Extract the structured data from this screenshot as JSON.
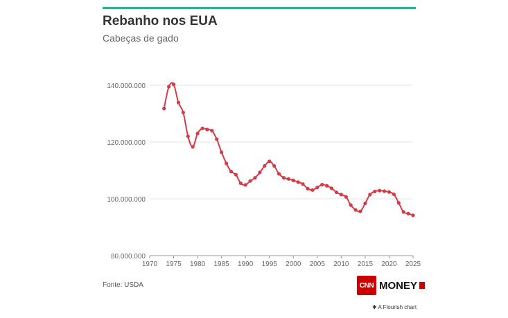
{
  "header": {
    "title": "Rebanho nos EUA",
    "subtitle": "Cabeças de gado"
  },
  "footer": {
    "source": "Fonte: USDA",
    "logo_cnn": "CNN",
    "logo_money": "MONEY",
    "flourish": "✱ A Flourish chart"
  },
  "colors": {
    "line": "#d33b46",
    "accent_bar": "#2fb38a",
    "logo_red": "#cc0000"
  },
  "chart_data": {
    "type": "line",
    "title": "Rebanho nos EUA",
    "subtitle": "Cabeças de gado",
    "xlabel": "",
    "ylabel": "",
    "xlim": [
      1970,
      2025
    ],
    "ylim": [
      80000000,
      150000000
    ],
    "x_ticks": [
      1970,
      1975,
      1980,
      1985,
      1990,
      1995,
      2000,
      2005,
      2010,
      2015,
      2020,
      2025
    ],
    "y_ticks": [
      80000000,
      100000000,
      120000000,
      140000000
    ],
    "y_tick_labels": [
      "80.000.000",
      "100.000.000",
      "120.000.000",
      "140.000.000"
    ],
    "grid": true,
    "series": [
      {
        "x": [
          1973,
          1974,
          1975,
          1976,
          1977,
          1978,
          1979,
          1980,
          1981,
          1982,
          1983,
          1984,
          1985,
          1986,
          1987,
          1988,
          1989,
          1990,
          1991,
          1992,
          1993,
          1994,
          1995,
          1996,
          1997,
          1998,
          1999,
          2000,
          2001,
          2002,
          2003,
          2004,
          2005,
          2006,
          2007,
          2008,
          2009,
          2010,
          2011,
          2012,
          2013,
          2014,
          2015,
          2016,
          2017,
          2018,
          2019,
          2020,
          2021,
          2022,
          2023,
          2024,
          2025
        ],
        "values": [
          131800000,
          139500000,
          140300000,
          133900000,
          130400000,
          122000000,
          118300000,
          123000000,
          124800000,
          124400000,
          124000000,
          121000000,
          116400000,
          112500000,
          109600000,
          108500000,
          105500000,
          104900000,
          106300000,
          107400000,
          109300000,
          111600000,
          113200000,
          111600000,
          108800000,
          107400000,
          107000000,
          106500000,
          105900000,
          105200000,
          103600000,
          103100000,
          104000000,
          105000000,
          104600000,
          103700000,
          102300000,
          101500000,
          100700000,
          97800000,
          96100000,
          95600000,
          98400000,
          101500000,
          102600000,
          102900000,
          102700000,
          102400000,
          101600000,
          98600000,
          95400000,
          94800000,
          94200000
        ]
      }
    ]
  }
}
